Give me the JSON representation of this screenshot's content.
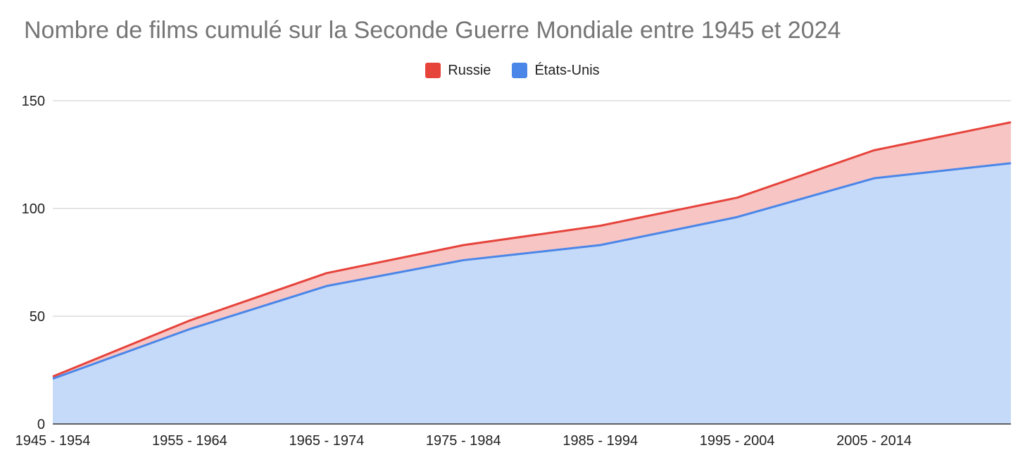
{
  "chart_data": {
    "type": "area",
    "stacked": true,
    "title": "Nombre de films cumulé sur la Seconde Guerre Mondiale entre 1945 et 2024",
    "categories": [
      "1945 - 1954",
      "1955 - 1964",
      "1965 - 1974",
      "1975 - 1984",
      "1985 - 1994",
      "1995 - 2004",
      "2005 - 2014",
      ""
    ],
    "series": [
      {
        "name": "États-Unis",
        "color": "#4a86e8",
        "fill": "#c5d9f8",
        "values": [
          21,
          44,
          64,
          76,
          83,
          96,
          114,
          121
        ]
      },
      {
        "name": "Russie",
        "color": "#e6433b",
        "fill": "#f6c5c4",
        "values": [
          1,
          4,
          6,
          7,
          9,
          9,
          13,
          19
        ]
      }
    ],
    "legend_order": [
      "Russie",
      "États-Unis"
    ],
    "legend_position": "top",
    "ylim": [
      0,
      150
    ],
    "yticks": [
      0,
      50,
      100,
      150
    ],
    "grid": true,
    "xlabel": "",
    "ylabel": ""
  }
}
